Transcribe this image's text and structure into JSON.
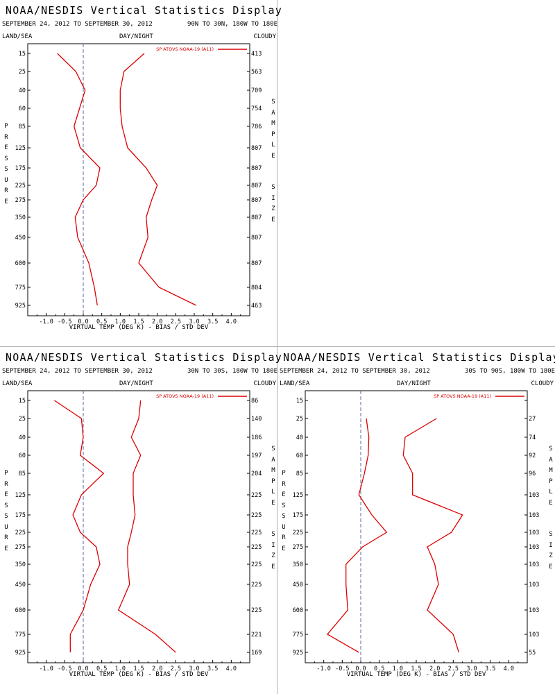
{
  "display": {
    "title": "NOAA/NESDIS Vertical Statistics Display",
    "date_range": "SEPTEMBER 24, 2012 TO SEPTEMBER 30, 2012",
    "land_sea": "LAND/SEA",
    "day_night": "DAY/NIGHT",
    "cloudy": "CLOUDY",
    "xlabel": "VIRTUAL TEMP (DEG K) - BIAS / STD DEV",
    "ylabel": "PRESSURE",
    "right_label_top": "SAMPLE",
    "right_label_bottom": "SIZE",
    "legend": "SP ATOVS NOAA-19 (A11)",
    "series_color": "#dd0000"
  },
  "chart_data": [
    {
      "type": "line",
      "region": "90N TO 30N, 180W TO 180E",
      "pressure_levels": [
        15,
        25,
        40,
        60,
        85,
        125,
        175,
        225,
        275,
        350,
        450,
        600,
        775,
        925
      ],
      "series": [
        {
          "name": "bias",
          "values": [
            -0.7,
            -0.2,
            0.05,
            -0.1,
            -0.25,
            -0.08,
            0.45,
            0.35,
            0.0,
            -0.22,
            -0.15,
            0.15,
            0.3,
            0.38
          ]
        },
        {
          "name": "std_dev",
          "values": [
            1.65,
            1.1,
            1.0,
            1.0,
            1.05,
            1.2,
            1.7,
            2.0,
            1.85,
            1.7,
            1.75,
            1.5,
            2.05,
            3.05
          ]
        }
      ],
      "sample_size": [
        "413",
        "563",
        "709",
        "754",
        "786",
        "807",
        "807",
        "807",
        "807",
        "807",
        "807",
        "807",
        "804",
        "463"
      ],
      "xlim": [
        -1.5,
        4.5
      ],
      "xticks": [
        "-1.0",
        "-0.5",
        "0.0",
        "0.5",
        "1.0",
        "1.5",
        "2.0",
        "2.5",
        "3.0",
        "3.5",
        "4.0"
      ]
    },
    {
      "type": "line",
      "region": "30N TO 30S, 180W TO 180E",
      "pressure_levels": [
        15,
        25,
        40,
        60,
        85,
        125,
        175,
        225,
        275,
        350,
        450,
        600,
        775,
        925
      ],
      "series": [
        {
          "name": "bias",
          "values": [
            -0.78,
            -0.05,
            0.0,
            -0.08,
            0.55,
            -0.05,
            -0.28,
            -0.08,
            0.35,
            0.45,
            0.2,
            0.0,
            -0.35,
            -0.35
          ]
        },
        {
          "name": "std_dev",
          "values": [
            1.55,
            1.5,
            1.3,
            1.55,
            1.35,
            1.35,
            1.4,
            1.3,
            1.2,
            1.2,
            1.25,
            0.95,
            1.95,
            2.5
          ]
        }
      ],
      "sample_size": [
        "86",
        "140",
        "186",
        "197",
        "204",
        "225",
        "225",
        "225",
        "225",
        "225",
        "225",
        "225",
        "221",
        "169"
      ],
      "xlim": [
        -1.5,
        4.5
      ],
      "xticks": [
        "-1.0",
        "-0.5",
        "0.0",
        "0.5",
        "1.0",
        "1.5",
        "2.0",
        "2.5",
        "3.0",
        "3.5",
        "4.0"
      ]
    },
    {
      "type": "line",
      "region": "30S TO 90S, 180W TO 180E",
      "pressure_levels": [
        15,
        25,
        40,
        60,
        85,
        125,
        175,
        225,
        275,
        350,
        450,
        600,
        775,
        925
      ],
      "series": [
        {
          "name": "bias",
          "values": [
            null,
            0.15,
            0.22,
            0.2,
            0.1,
            -0.05,
            0.3,
            0.7,
            0.05,
            -0.4,
            -0.4,
            -0.35,
            -0.9,
            -0.05
          ]
        },
        {
          "name": "std_dev",
          "values": [
            null,
            2.05,
            1.2,
            1.15,
            1.4,
            1.4,
            2.75,
            2.45,
            1.8,
            2.0,
            2.1,
            1.8,
            2.5,
            2.65
          ]
        }
      ],
      "sample_size": [
        "",
        "27",
        "74",
        "92",
        "96",
        "103",
        "103",
        "103",
        "103",
        "103",
        "103",
        "103",
        "103",
        "55"
      ],
      "xlim": [
        -1.5,
        4.5
      ],
      "xticks": [
        "-1.0",
        "-0.5",
        "0.0",
        "0.5",
        "1.0",
        "1.5",
        "2.0",
        "2.5",
        "3.0",
        "3.5",
        "4.0"
      ]
    }
  ]
}
